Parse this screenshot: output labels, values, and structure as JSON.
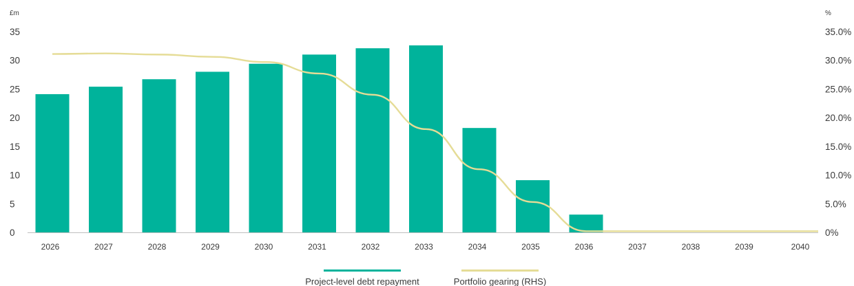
{
  "chart_data": {
    "type": "bar",
    "left_axis_unit": "£m",
    "right_axis_unit": "%",
    "categories": [
      "2026",
      "2027",
      "2028",
      "2029",
      "2030",
      "2031",
      "2032",
      "2033",
      "2034",
      "2035",
      "2036",
      "2037",
      "2038",
      "2039",
      "2040"
    ],
    "series": [
      {
        "name": "Project-level debt repayment",
        "type": "bar",
        "axis": "left",
        "color": "#00b39b",
        "values": [
          24.1,
          25.4,
          26.7,
          28.0,
          29.4,
          31.0,
          32.1,
          32.6,
          18.2,
          9.1,
          3.1,
          0,
          0,
          0,
          0
        ]
      },
      {
        "name": "Portfolio gearing (RHS)",
        "type": "line",
        "axis": "right",
        "color": "#e5dc96",
        "values": [
          31.1,
          31.2,
          31.0,
          30.6,
          29.7,
          27.7,
          24.0,
          18.0,
          11.0,
          5.3,
          0.2,
          0.2,
          0.2,
          0.2,
          0.2
        ]
      }
    ],
    "left_ticks": [
      "0",
      "5",
      "10",
      "15",
      "20",
      "25",
      "30",
      "35"
    ],
    "right_ticks": [
      "0%",
      "5.0%",
      "10.0%",
      "15.0%",
      "20.0%",
      "25.0%",
      "30.0%",
      "35.0%"
    ],
    "ylim_left": [
      0,
      35
    ],
    "ylim_right": [
      0,
      35
    ],
    "legend_position": "bottom-center",
    "grid": false
  }
}
